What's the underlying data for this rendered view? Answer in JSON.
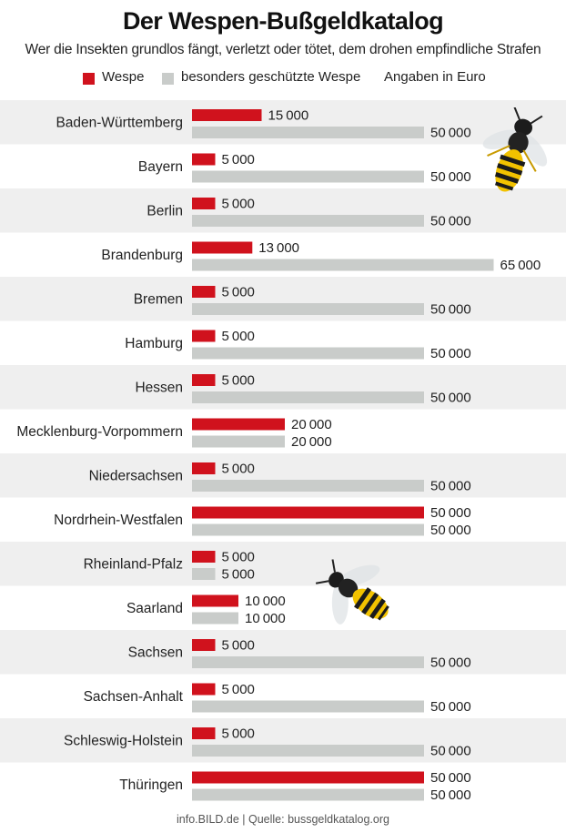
{
  "title": "Der Wespen-Bußgeldkatalog",
  "subtitle": "Wer die Insekten grundlos fängt, verletzt oder tötet, dem drohen empfindliche Strafen",
  "legend": {
    "wespe": "Wespe",
    "geschuetzt": "besonders geschützte Wespe",
    "unit": "Angaben in Euro"
  },
  "footer": "info.BILD.de | Quelle: bussgeldkatalog.org",
  "colors": {
    "wespe": "#d0121d",
    "geschuetzt": "#c9ccca",
    "stripe": "#efefef"
  },
  "decor": {
    "wasp_icon": "wasp-illustration"
  },
  "chart_data": {
    "type": "bar",
    "orientation": "horizontal",
    "xlim": [
      0,
      65000
    ],
    "unit": "Euro",
    "categories": [
      "Baden-Württemberg",
      "Bayern",
      "Berlin",
      "Brandenburg",
      "Bremen",
      "Hamburg",
      "Hessen",
      "Mecklenburg-Vorpommern",
      "Niedersachsen",
      "Nordrhein-Westfalen",
      "Rheinland-Pfalz",
      "Saarland",
      "Sachsen",
      "Sachsen-Anhalt",
      "Schleswig-Holstein",
      "Thüringen"
    ],
    "series": [
      {
        "name": "Wespe",
        "values": [
          15000,
          5000,
          5000,
          13000,
          5000,
          5000,
          5000,
          20000,
          5000,
          50000,
          5000,
          10000,
          5000,
          5000,
          5000,
          50000
        ]
      },
      {
        "name": "besonders geschützte Wespe",
        "values": [
          50000,
          50000,
          50000,
          65000,
          50000,
          50000,
          50000,
          20000,
          50000,
          50000,
          5000,
          10000,
          50000,
          50000,
          50000,
          50000
        ]
      }
    ]
  }
}
